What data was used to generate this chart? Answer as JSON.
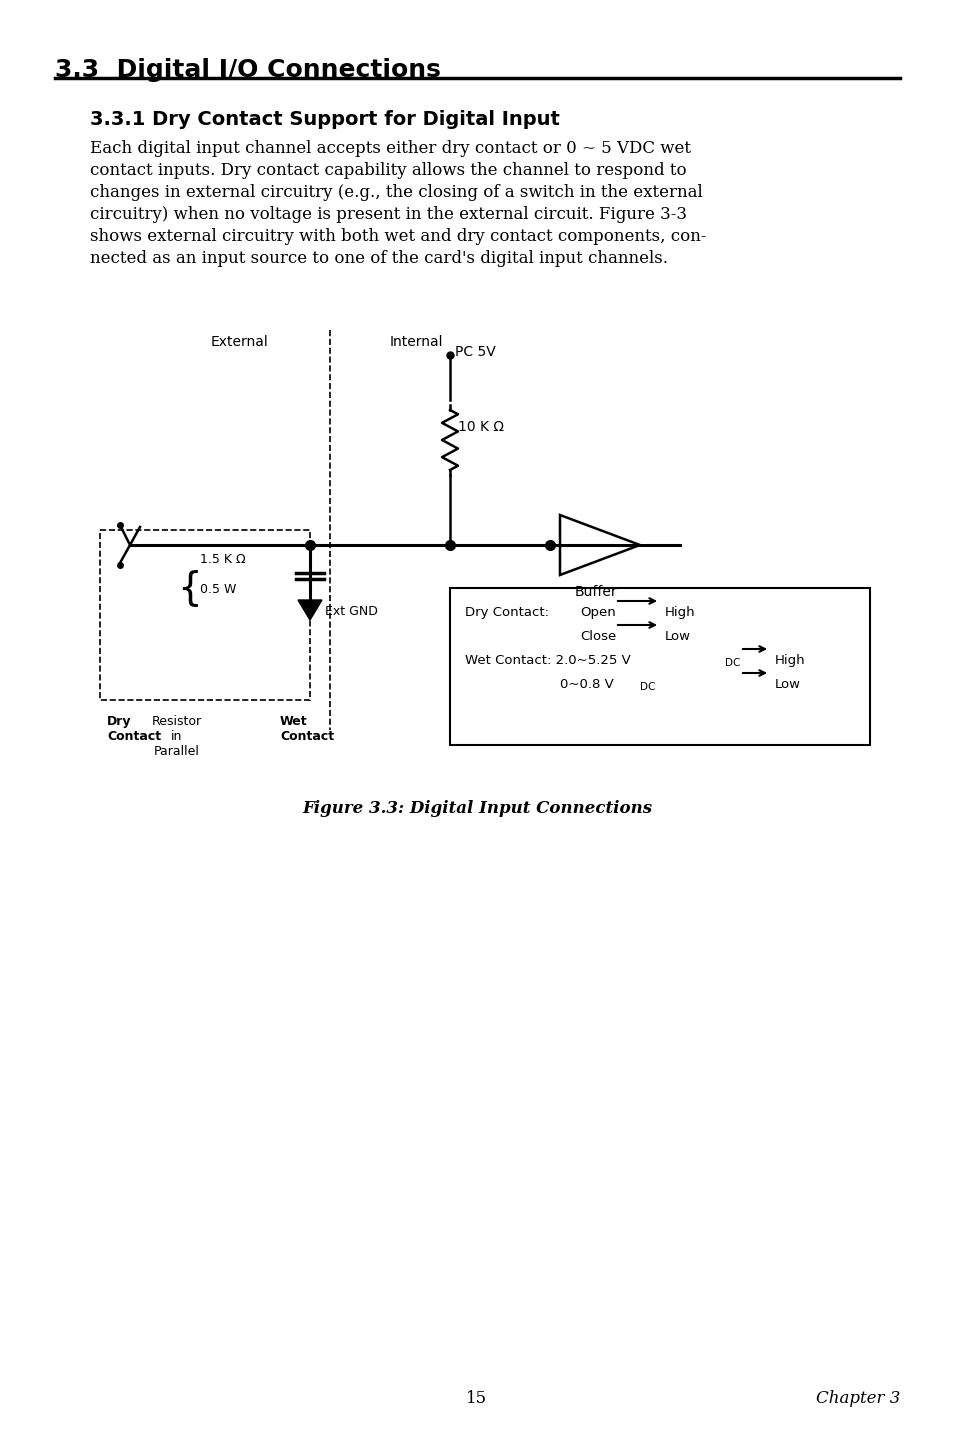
{
  "page_title": "3.3  Digital I/O Connections",
  "section_title": "3.3.1 Dry Contact Support for Digital Input",
  "body_text": "Each digital input channel accepts either dry contact or 0 ~ 5 VDC wet\ncontact inputs. Dry contact capability allows the channel to respond to\nchanges in external circuitry (e.g., the closing of a switch in the external\ncircuitry) when no voltage is present in the external circuit. Figure 3-3\nshows external circuitry with both wet and dry contact components, con-\nnected as an input source to one of the card's digital input channels.",
  "figure_caption": "Figure 3.3: Digital Input Connections",
  "page_number": "15",
  "chapter": "Chapter 3",
  "bg_color": "#ffffff",
  "text_color": "#000000"
}
